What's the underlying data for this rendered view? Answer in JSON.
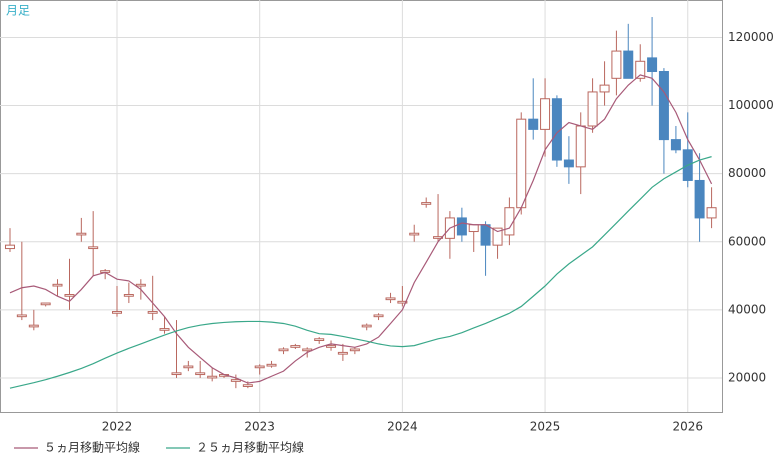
{
  "chart_data": {
    "type": "candlestick",
    "title": "月足",
    "x": [
      2021.25,
      2021.333,
      2021.417,
      2021.5,
      2021.583,
      2021.667,
      2021.75,
      2021.833,
      2021.917,
      2022,
      2022.083,
      2022.167,
      2022.25,
      2022.333,
      2022.417,
      2022.5,
      2022.583,
      2022.667,
      2022.75,
      2022.833,
      2022.917,
      2023,
      2023.083,
      2023.167,
      2023.25,
      2023.333,
      2023.417,
      2023.5,
      2023.583,
      2023.667,
      2023.75,
      2023.833,
      2023.917,
      2024,
      2024.083,
      2024.167,
      2024.25,
      2024.333,
      2024.417,
      2024.5,
      2024.583,
      2024.667,
      2024.75,
      2024.833,
      2024.917,
      2025,
      2025.083,
      2025.167,
      2025.25,
      2025.333,
      2025.417,
      2025.5,
      2025.583,
      2025.667,
      2025.75,
      2025.833,
      2025.917,
      2026,
      2026.083,
      2026.167
    ],
    "open": [
      58000,
      38000,
      35000,
      41500,
      47000,
      44000,
      62000,
      58000,
      51000,
      39000,
      44000,
      47000,
      39000,
      34000,
      21000,
      23000,
      21000,
      20000,
      20500,
      19000,
      17500,
      23000,
      23500,
      28000,
      29000,
      28000,
      31000,
      29000,
      27000,
      28000,
      35000,
      38000,
      43000,
      42000,
      62000,
      71000,
      61000,
      61000,
      67000,
      63000,
      65000,
      59000,
      62000,
      70000,
      96000,
      93000,
      102000,
      84000,
      82000,
      94000,
      104000,
      108000,
      116000,
      108000,
      114000,
      110000,
      90000,
      87000,
      78000,
      67000
    ],
    "high": [
      64000,
      60000,
      40000,
      42000,
      49000,
      55000,
      67000,
      69000,
      52000,
      47000,
      48000,
      49000,
      50000,
      38000,
      37000,
      25000,
      25000,
      23000,
      21000,
      21000,
      19000,
      24000,
      25000,
      29000,
      30000,
      29000,
      32000,
      31000,
      30000,
      29000,
      36000,
      39000,
      45000,
      47000,
      65000,
      73000,
      74000,
      69000,
      70000,
      65000,
      66000,
      64000,
      73000,
      98000,
      108000,
      108000,
      103000,
      91000,
      98000,
      108000,
      113000,
      122000,
      124000,
      118000,
      126000,
      111000,
      94000,
      98000,
      86000,
      76000
    ],
    "low": [
      57000,
      37000,
      34000,
      41000,
      44000,
      40000,
      60000,
      50000,
      49000,
      38000,
      42000,
      43000,
      37000,
      33000,
      20000,
      22000,
      20000,
      19000,
      20000,
      17000,
      17000,
      21000,
      23000,
      27000,
      28500,
      26000,
      30000,
      28000,
      25000,
      27000,
      34000,
      37000,
      42000,
      41000,
      60000,
      70000,
      60000,
      55000,
      60000,
      57000,
      50000,
      55000,
      59000,
      68000,
      90000,
      85000,
      82000,
      77000,
      74000,
      92000,
      100000,
      103000,
      108000,
      107000,
      100000,
      80000,
      86000,
      76000,
      60000,
      64000
    ],
    "close": [
      59000,
      38500,
      35500,
      42000,
      47500,
      44500,
      62500,
      58500,
      51500,
      39500,
      44500,
      47500,
      39500,
      34500,
      21500,
      23500,
      21500,
      20500,
      21000,
      19500,
      18000,
      23500,
      24000,
      28500,
      29500,
      28500,
      31500,
      29500,
      27500,
      28500,
      35500,
      38500,
      43500,
      42500,
      62500,
      71500,
      61500,
      67000,
      62000,
      65000,
      59000,
      64000,
      70000,
      96000,
      93000,
      102000,
      84000,
      82000,
      94000,
      104000,
      106000,
      116000,
      108000,
      113000,
      110000,
      90000,
      87000,
      78000,
      67000,
      70000
    ],
    "up_color": "#b9675e",
    "down_color": "#4a86bf",
    "series": [
      {
        "name": "５ヵ月移動平均線",
        "color": "#a85a78",
        "values": [
          45000,
          46500,
          47000,
          46000,
          44000,
          42500,
          46000,
          50000,
          51000,
          49000,
          48500,
          46000,
          42000,
          38000,
          33000,
          29000,
          26000,
          23000,
          21000,
          20000,
          18500,
          19000,
          20500,
          22000,
          25000,
          27500,
          29000,
          30000,
          29500,
          29000,
          30000,
          32000,
          36000,
          40000,
          48000,
          54000,
          60000,
          64000,
          65500,
          65000,
          65000,
          63000,
          64000,
          70000,
          78000,
          87000,
          92000,
          95000,
          94000,
          93000,
          96000,
          102000,
          106000,
          109000,
          108000,
          104000,
          98000,
          90000,
          84000,
          77000
        ]
      },
      {
        "name": "２５ヵ月移動平均線",
        "color": "#3aa88a",
        "values": [
          17000,
          17800,
          18600,
          19500,
          20500,
          21600,
          22800,
          24200,
          25800,
          27300,
          28700,
          30000,
          31300,
          32600,
          33800,
          34800,
          35500,
          36000,
          36300,
          36500,
          36600,
          36600,
          36400,
          36000,
          35200,
          34000,
          33000,
          32800,
          32200,
          31500,
          30800,
          30000,
          29400,
          29200,
          29500,
          30500,
          31500,
          32200,
          33300,
          34700,
          36000,
          37500,
          39000,
          41000,
          44000,
          47000,
          50500,
          53500,
          56000,
          58500,
          62000,
          65500,
          69000,
          72500,
          76000,
          78500,
          80500,
          82500,
          84000,
          85000
        ]
      }
    ],
    "xlim": [
      2021.18,
      2026.24
    ],
    "xticks": [
      2022,
      2023,
      2024,
      2025,
      2026
    ],
    "ylim": [
      10000,
      131000
    ],
    "yticks": [
      20000,
      40000,
      60000,
      80000,
      100000,
      120000
    ],
    "grid": true
  }
}
